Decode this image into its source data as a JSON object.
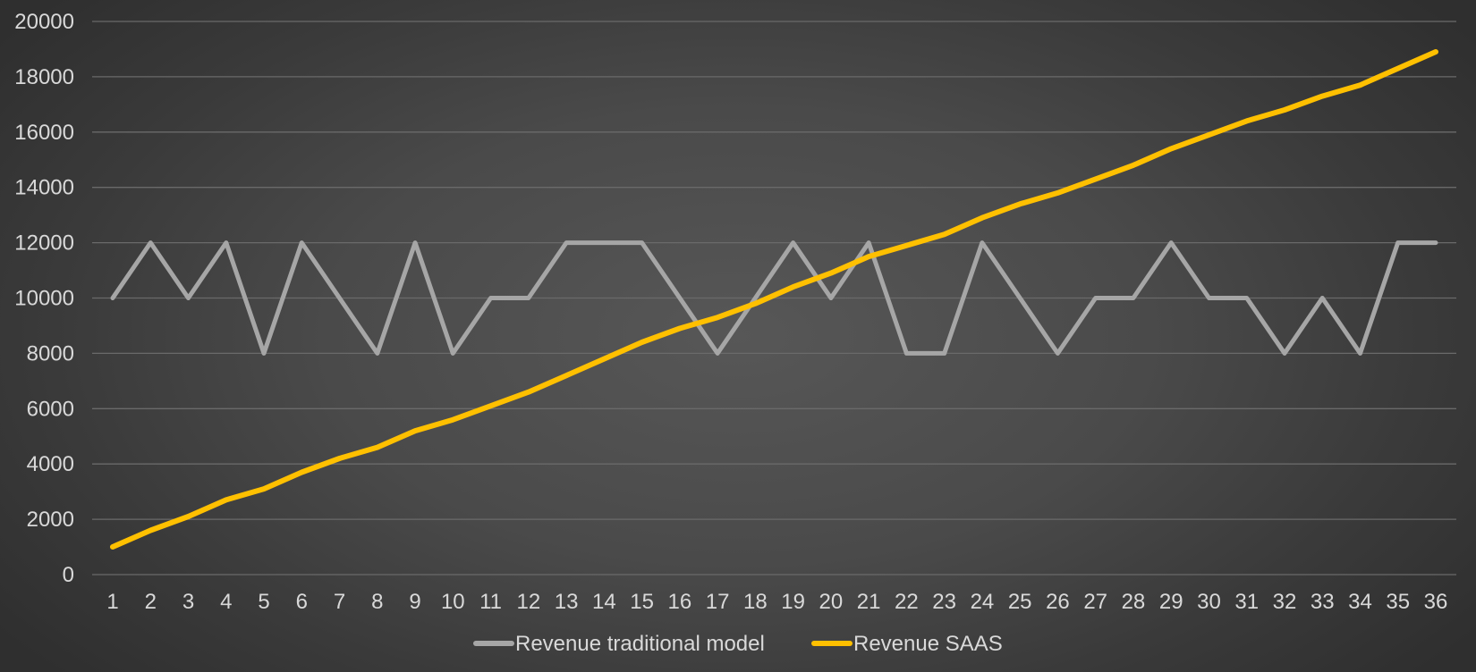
{
  "chart_data": {
    "type": "line",
    "title": "",
    "xlabel": "",
    "ylabel": "",
    "x": [
      1,
      2,
      3,
      4,
      5,
      6,
      7,
      8,
      9,
      10,
      11,
      12,
      13,
      14,
      15,
      16,
      17,
      18,
      19,
      20,
      21,
      22,
      23,
      24,
      25,
      26,
      27,
      28,
      29,
      30,
      31,
      32,
      33,
      34,
      35,
      36
    ],
    "x_tick_labels": [
      "1",
      "2",
      "3",
      "4",
      "5",
      "6",
      "7",
      "8",
      "9",
      "10",
      "11",
      "12",
      "13",
      "14",
      "15",
      "16",
      "17",
      "18",
      "19",
      "20",
      "21",
      "22",
      "23",
      "24",
      "25",
      "26",
      "27",
      "28",
      "29",
      "30",
      "31",
      "32",
      "33",
      "34",
      "35",
      "36"
    ],
    "ylim": [
      0,
      20000
    ],
    "y_ticks": [
      0,
      2000,
      4000,
      6000,
      8000,
      10000,
      12000,
      14000,
      16000,
      18000,
      20000
    ],
    "y_tick_labels": [
      "0",
      "2000",
      "4000",
      "6000",
      "8000",
      "10000",
      "12000",
      "14000",
      "16000",
      "18000",
      "20000"
    ],
    "grid": true,
    "legend_position": "bottom",
    "series": [
      {
        "name": "Revenue traditional model",
        "color": "#a6a6a6",
        "values": [
          10000,
          12000,
          10000,
          12000,
          8000,
          12000,
          10000,
          8000,
          12000,
          8000,
          10000,
          10000,
          12000,
          12000,
          12000,
          10000,
          8000,
          10000,
          12000,
          10000,
          12000,
          8000,
          8000,
          12000,
          10000,
          8000,
          10000,
          10000,
          12000,
          10000,
          10000,
          8000,
          10000,
          8000,
          12000,
          12000
        ]
      },
      {
        "name": "Revenue SAAS",
        "color": "#ffc000",
        "values": [
          1000,
          1600,
          2100,
          2700,
          3100,
          3700,
          4200,
          4600,
          5200,
          5600,
          6100,
          6600,
          7200,
          7800,
          8400,
          8900,
          9300,
          9800,
          10400,
          10900,
          11500,
          11900,
          12300,
          12900,
          13400,
          13800,
          14300,
          14800,
          15400,
          15900,
          16400,
          16800,
          17300,
          17700,
          18300,
          18900
        ]
      }
    ]
  }
}
